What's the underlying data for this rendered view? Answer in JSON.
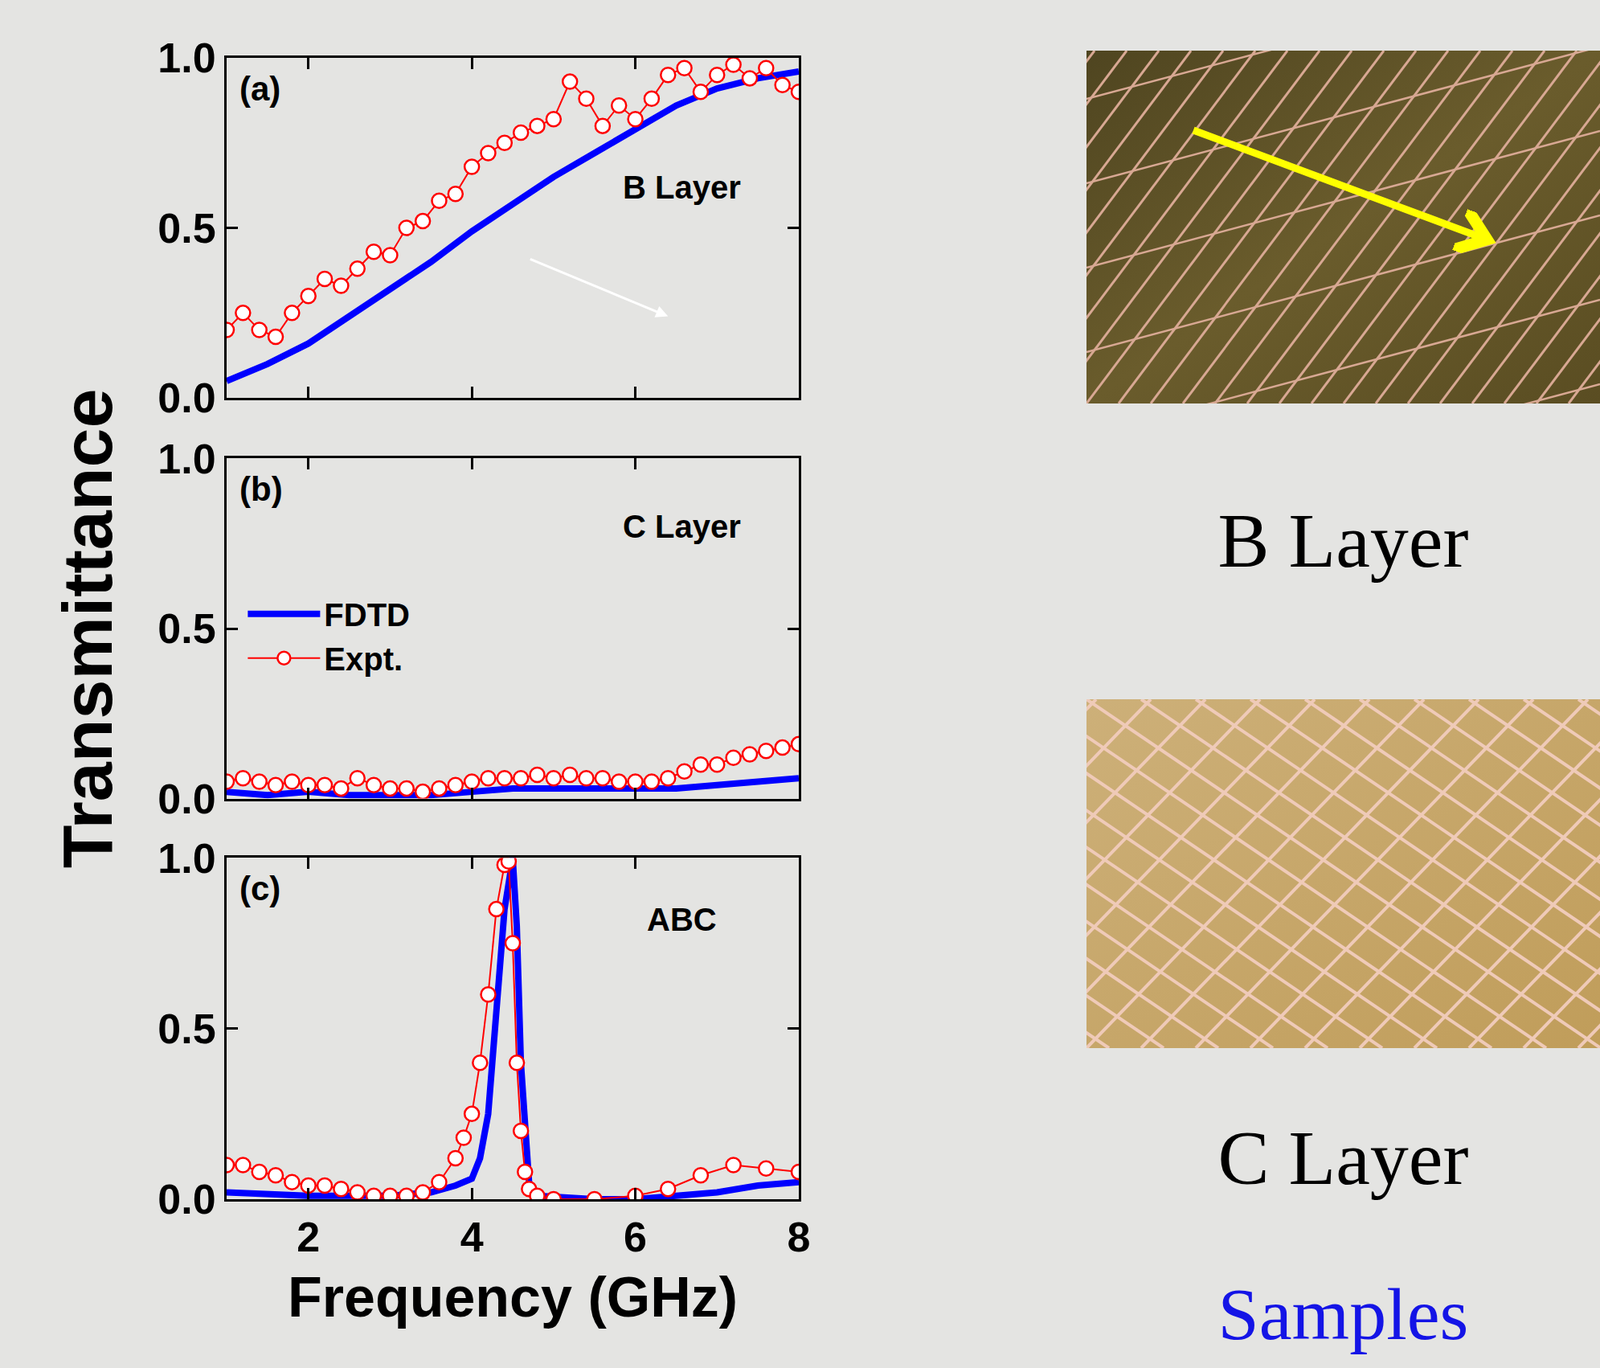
{
  "chart_data": [
    {
      "type": "line",
      "label": "(a)",
      "title": "B Layer",
      "xlim": [
        1,
        8
      ],
      "xticks": [
        2,
        4,
        6,
        8
      ],
      "ylim": [
        0,
        1
      ],
      "yticks": [
        {
          "value": 0,
          "label": "0.0"
        },
        {
          "value": 0.5,
          "label": "0.5"
        },
        {
          "value": 1,
          "label": "1.0"
        }
      ],
      "grid": false,
      "tick_labels": "y",
      "series": [
        {
          "color": "#0000ff",
          "line_style": "solid",
          "x": [
            1,
            1.5,
            2,
            2.5,
            3,
            3.5,
            4,
            4.5,
            5,
            5.5,
            6,
            6.5,
            7,
            7.5,
            8
          ],
          "values": [
            0.05,
            0.1,
            0.16,
            0.24,
            0.32,
            0.4,
            0.49,
            0.57,
            0.65,
            0.72,
            0.79,
            0.86,
            0.91,
            0.94,
            0.96
          ]
        },
        {
          "color": "#ff0000",
          "line_style": "solid",
          "marker": "circle-open",
          "x": [
            1.0,
            1.2,
            1.4,
            1.6,
            1.8,
            2.0,
            2.2,
            2.4,
            2.6,
            2.8,
            3.0,
            3.2,
            3.4,
            3.6,
            3.8,
            4.0,
            4.2,
            4.4,
            4.6,
            4.8,
            5.0,
            5.2,
            5.4,
            5.6,
            5.8,
            6.0,
            6.2,
            6.4,
            6.6,
            6.8,
            7.0,
            7.2,
            7.4,
            7.6,
            7.8,
            8.0
          ],
          "values": [
            0.2,
            0.25,
            0.2,
            0.18,
            0.25,
            0.3,
            0.35,
            0.33,
            0.38,
            0.43,
            0.42,
            0.5,
            0.52,
            0.58,
            0.6,
            0.68,
            0.72,
            0.75,
            0.78,
            0.8,
            0.82,
            0.93,
            0.88,
            0.8,
            0.86,
            0.82,
            0.88,
            0.95,
            0.97,
            0.9,
            0.95,
            0.98,
            0.94,
            0.97,
            0.92,
            0.9
          ]
        }
      ]
    },
    {
      "type": "line",
      "label": "(b)",
      "title": "C Layer",
      "ylabel": "Transmittance",
      "xlim": [
        1,
        8
      ],
      "xticks": [
        2,
        4,
        6,
        8
      ],
      "ylim": [
        0,
        1
      ],
      "yticks": [
        {
          "value": 0,
          "label": "0.0"
        },
        {
          "value": 0.5,
          "label": "0.5"
        },
        {
          "value": 1,
          "label": "1.0"
        }
      ],
      "grid": false,
      "tick_labels": "y",
      "legend": "left",
      "series": [
        {
          "name": "FDTD",
          "color": "#0000ff",
          "line_style": "solid",
          "x": [
            1,
            1.5,
            2,
            2.5,
            3,
            3.5,
            4,
            4.5,
            5,
            5.5,
            6,
            6.5,
            7,
            7.5,
            8
          ],
          "values": [
            0.02,
            0.01,
            0.02,
            0.01,
            0.01,
            0.01,
            0.02,
            0.03,
            0.03,
            0.03,
            0.03,
            0.03,
            0.04,
            0.05,
            0.06
          ]
        },
        {
          "name": "Expt.",
          "color": "#ff0000",
          "line_style": "solid",
          "marker": "circle-open",
          "x": [
            1.0,
            1.2,
            1.4,
            1.6,
            1.8,
            2.0,
            2.2,
            2.4,
            2.6,
            2.8,
            3.0,
            3.2,
            3.4,
            3.6,
            3.8,
            4.0,
            4.2,
            4.4,
            4.6,
            4.8,
            5.0,
            5.2,
            5.4,
            5.6,
            5.8,
            6.0,
            6.2,
            6.4,
            6.6,
            6.8,
            7.0,
            7.2,
            7.4,
            7.6,
            7.8,
            8.0
          ],
          "values": [
            0.05,
            0.06,
            0.05,
            0.04,
            0.05,
            0.04,
            0.04,
            0.03,
            0.06,
            0.04,
            0.03,
            0.03,
            0.02,
            0.03,
            0.04,
            0.05,
            0.06,
            0.06,
            0.06,
            0.07,
            0.06,
            0.07,
            0.06,
            0.06,
            0.05,
            0.05,
            0.05,
            0.06,
            0.08,
            0.1,
            0.1,
            0.12,
            0.13,
            0.14,
            0.15,
            0.16
          ]
        }
      ]
    },
    {
      "type": "line",
      "label": "(c)",
      "title": "ABC",
      "xlabel": "Frequency (GHz)",
      "xlim": [
        1,
        8
      ],
      "xticks": [
        2,
        4,
        6,
        8
      ],
      "ylim": [
        0,
        1
      ],
      "yticks": [
        {
          "value": 0,
          "label": "0.0"
        },
        {
          "value": 0.5,
          "label": "0.5"
        },
        {
          "value": 1,
          "label": "1.0"
        }
      ],
      "grid": false,
      "series": [
        {
          "color": "#0000ff",
          "line_style": "solid",
          "x": [
            1,
            2,
            3,
            3.5,
            3.8,
            4.0,
            4.1,
            4.2,
            4.3,
            4.4,
            4.5,
            4.55,
            4.6,
            4.7,
            4.8,
            5.5,
            6,
            6.5,
            7,
            7.5,
            8
          ],
          "values": [
            0.02,
            0.01,
            0.01,
            0.02,
            0.04,
            0.06,
            0.12,
            0.25,
            0.55,
            0.85,
            1.0,
            0.8,
            0.4,
            0.05,
            0.01,
            0.0,
            0.0,
            0.01,
            0.02,
            0.04,
            0.05
          ]
        },
        {
          "color": "#ff0000",
          "line_style": "solid",
          "marker": "circle-open",
          "x": [
            1.0,
            1.2,
            1.4,
            1.6,
            1.8,
            2.0,
            2.2,
            2.4,
            2.6,
            2.8,
            3.0,
            3.2,
            3.4,
            3.6,
            3.8,
            3.9,
            4.0,
            4.1,
            4.2,
            4.3,
            4.4,
            4.45,
            4.5,
            4.55,
            4.6,
            4.65,
            4.7,
            4.8,
            5.0,
            5.5,
            6.0,
            6.4,
            6.8,
            7.2,
            7.6,
            8.0
          ],
          "values": [
            0.1,
            0.1,
            0.08,
            0.07,
            0.05,
            0.04,
            0.04,
            0.03,
            0.02,
            0.01,
            0.01,
            0.01,
            0.02,
            0.05,
            0.12,
            0.18,
            0.25,
            0.4,
            0.6,
            0.85,
            0.98,
            0.99,
            0.75,
            0.4,
            0.2,
            0.08,
            0.03,
            0.01,
            0.0,
            0.0,
            0.01,
            0.03,
            0.07,
            0.1,
            0.09,
            0.08
          ]
        }
      ]
    }
  ],
  "photos": [
    {
      "label": "B Layer"
    },
    {
      "label": "C Layer"
    }
  ],
  "caption": "Samples"
}
